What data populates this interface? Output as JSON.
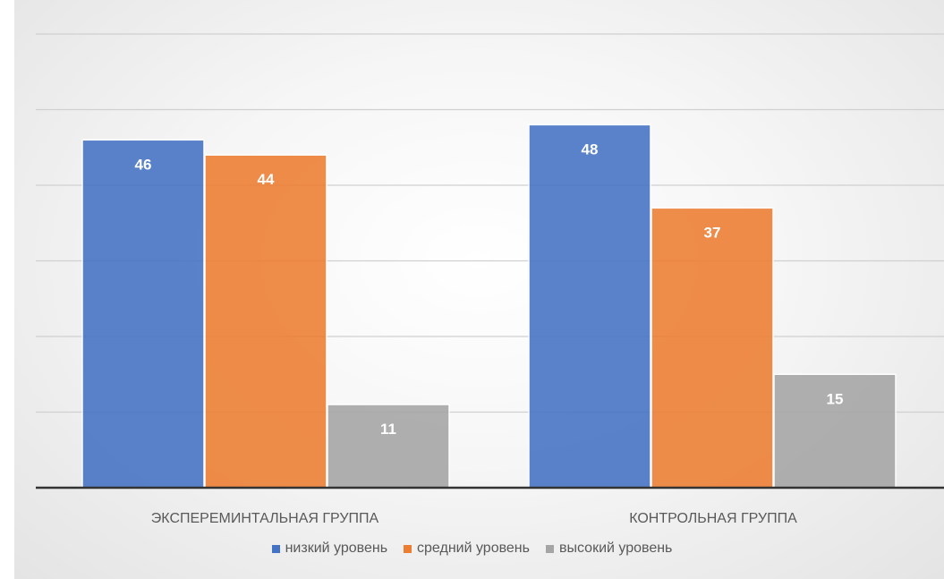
{
  "chart_data": {
    "type": "bar",
    "title": "",
    "xlabel": "",
    "ylabel": "",
    "categories": [
      "ЭКСПЕРЕМИНТАЛЬНАЯ ГРУППА",
      "КОНТРОЛЬНАЯ ГРУППА"
    ],
    "series": [
      {
        "name": "низкий уровень",
        "color": "#4472C4",
        "values": [
          46,
          48
        ]
      },
      {
        "name": "средний уровень",
        "color": "#ED7D31",
        "values": [
          44,
          37
        ]
      },
      {
        "name": "высокий уровень",
        "color": "#A5A5A5",
        "values": [
          11,
          15
        ]
      }
    ],
    "ylim": [
      0,
      60
    ],
    "grid": true,
    "legend_position": "bottom",
    "data_labels": true
  }
}
